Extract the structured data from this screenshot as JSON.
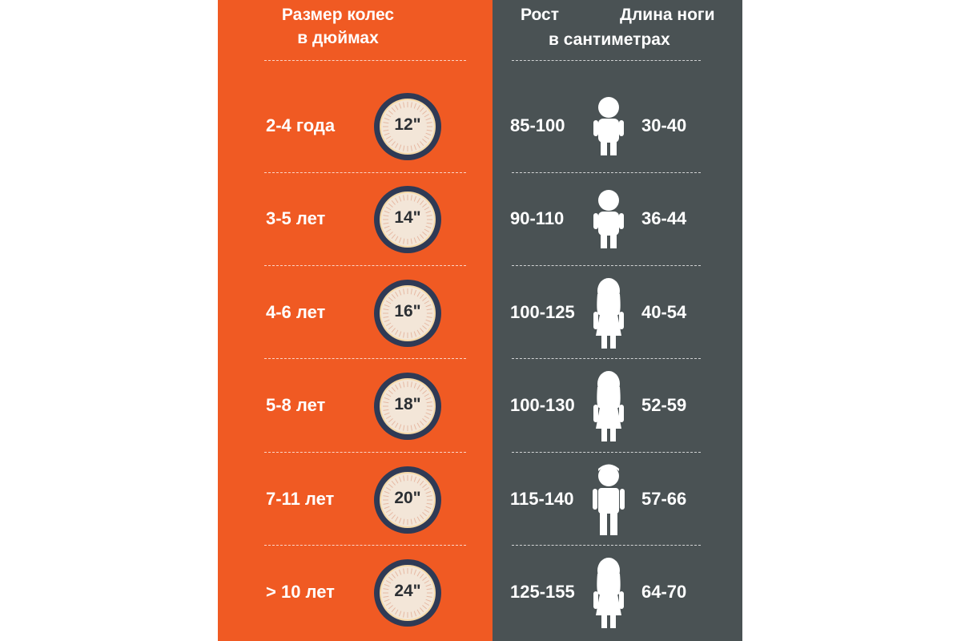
{
  "headers": {
    "wheel_size_line1": "Размер колес",
    "wheel_size_line2": "в дюймах",
    "height": "Рост",
    "leg_length": "Длина ноги",
    "unit": "в сантиметрах"
  },
  "colors": {
    "left_panel": "#f05a23",
    "right_panel": "#4a5254",
    "tire": "#2f3a55",
    "rim": "#f3e6d8",
    "text_light": "#ffffff"
  },
  "rows": [
    {
      "age": "2-4 года",
      "wheel": "12\"",
      "height": "85-100",
      "leg": "30-40",
      "figure_icon": "toddler-icon"
    },
    {
      "age": "3-5 лет",
      "wheel": "14\"",
      "height": "90-110",
      "leg": "36-44",
      "figure_icon": "toddler-icon"
    },
    {
      "age": "4-6 лет",
      "wheel": "16\"",
      "height": "100-125",
      "leg": "40-54",
      "figure_icon": "girl-icon"
    },
    {
      "age": "5-8 лет",
      "wheel": "18\"",
      "height": "100-130",
      "leg": "52-59",
      "figure_icon": "girl-icon"
    },
    {
      "age": "7-11 лет",
      "wheel": "20\"",
      "height": "115-140",
      "leg": "57-66",
      "figure_icon": "boy-icon"
    },
    {
      "age": "> 10 лет",
      "wheel": "24\"",
      "height": "125-155",
      "leg": "64-70",
      "figure_icon": "girl-icon"
    }
  ]
}
